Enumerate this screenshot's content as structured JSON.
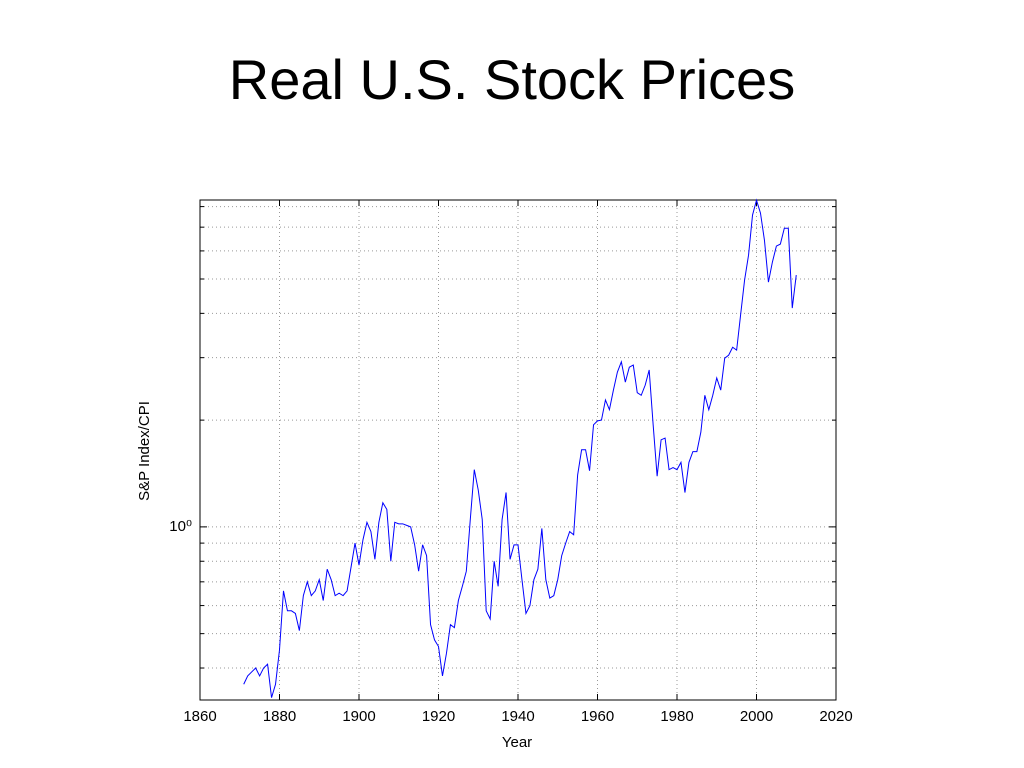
{
  "chart_data": {
    "type": "line",
    "title": "Real U.S. Stock Prices",
    "xlabel": "Year",
    "ylabel": "S&P Index/CPI",
    "x": [
      1871,
      1872,
      1873,
      1874,
      1875,
      1876,
      1877,
      1878,
      1879,
      1880,
      1881,
      1882,
      1883,
      1884,
      1885,
      1886,
      1887,
      1888,
      1889,
      1890,
      1891,
      1892,
      1893,
      1894,
      1895,
      1896,
      1897,
      1898,
      1899,
      1900,
      1901,
      1902,
      1903,
      1904,
      1905,
      1906,
      1907,
      1908,
      1909,
      1910,
      1911,
      1912,
      1913,
      1914,
      1915,
      1916,
      1917,
      1918,
      1919,
      1920,
      1921,
      1922,
      1923,
      1924,
      1925,
      1926,
      1927,
      1928,
      1929,
      1930,
      1931,
      1932,
      1933,
      1934,
      1935,
      1936,
      1937,
      1938,
      1939,
      1940,
      1941,
      1942,
      1943,
      1944,
      1945,
      1946,
      1947,
      1948,
      1949,
      1950,
      1951,
      1952,
      1953,
      1954,
      1955,
      1956,
      1957,
      1958,
      1959,
      1960,
      1961,
      1962,
      1963,
      1964,
      1965,
      1966,
      1967,
      1968,
      1969,
      1970,
      1971,
      1972,
      1973,
      1974,
      1975,
      1976,
      1977,
      1978,
      1979,
      1980,
      1981,
      1982,
      1983,
      1984,
      1985,
      1986,
      1987,
      1988,
      1989,
      1990,
      1991,
      1992,
      1993,
      1994,
      1995,
      1996,
      1997,
      1998,
      1999,
      2000,
      2001,
      2002,
      2003,
      2004,
      2005,
      2006,
      2007,
      2008,
      2009,
      2010
    ],
    "series": [
      {
        "color": "#0000ff",
        "values": [
          0.36,
          0.38,
          0.39,
          0.4,
          0.38,
          0.4,
          0.41,
          0.33,
          0.36,
          0.45,
          0.66,
          0.58,
          0.58,
          0.57,
          0.51,
          0.64,
          0.7,
          0.64,
          0.66,
          0.71,
          0.62,
          0.76,
          0.71,
          0.64,
          0.65,
          0.64,
          0.66,
          0.77,
          0.9,
          0.78,
          0.92,
          1.03,
          0.97,
          0.81,
          1.03,
          1.17,
          1.12,
          0.8,
          1.03,
          1.02,
          1.02,
          1.01,
          1.0,
          0.89,
          0.75,
          0.89,
          0.83,
          0.53,
          0.48,
          0.46,
          0.38,
          0.44,
          0.53,
          0.52,
          0.62,
          0.68,
          0.75,
          1.05,
          1.45,
          1.27,
          1.05,
          0.58,
          0.55,
          0.8,
          0.68,
          1.05,
          1.25,
          0.81,
          0.89,
          0.89,
          0.71,
          0.57,
          0.6,
          0.71,
          0.76,
          0.99,
          0.71,
          0.63,
          0.64,
          0.71,
          0.83,
          0.9,
          0.97,
          0.95,
          1.4,
          1.65,
          1.65,
          1.44,
          1.94,
          1.99,
          2.0,
          2.28,
          2.14,
          2.43,
          2.73,
          2.92,
          2.56,
          2.82,
          2.86,
          2.39,
          2.35,
          2.51,
          2.77,
          1.94,
          1.39,
          1.76,
          1.78,
          1.45,
          1.47,
          1.45,
          1.52,
          1.25,
          1.52,
          1.63,
          1.63,
          1.85,
          2.35,
          2.14,
          2.35,
          2.63,
          2.43,
          2.99,
          3.05,
          3.21,
          3.15,
          3.96,
          4.96,
          5.84,
          7.57,
          8.34,
          7.67,
          6.43,
          4.9,
          5.58,
          6.19,
          6.27,
          6.95,
          6.95,
          4.14,
          5.13
        ]
      }
    ],
    "xlim": [
      1860,
      2020
    ],
    "xticks": [
      1860,
      1880,
      1900,
      1920,
      1940,
      1960,
      1980,
      2000,
      2020
    ],
    "ylim": [
      0.325,
      8.35
    ],
    "ylog": true,
    "yticks": [
      {
        "value": 1,
        "label": "10⁰"
      }
    ],
    "yminorticks": [
      0.4,
      0.5,
      0.6,
      0.7,
      0.8,
      0.9,
      2,
      3,
      4,
      5,
      6,
      7,
      8
    ],
    "grid": true
  }
}
